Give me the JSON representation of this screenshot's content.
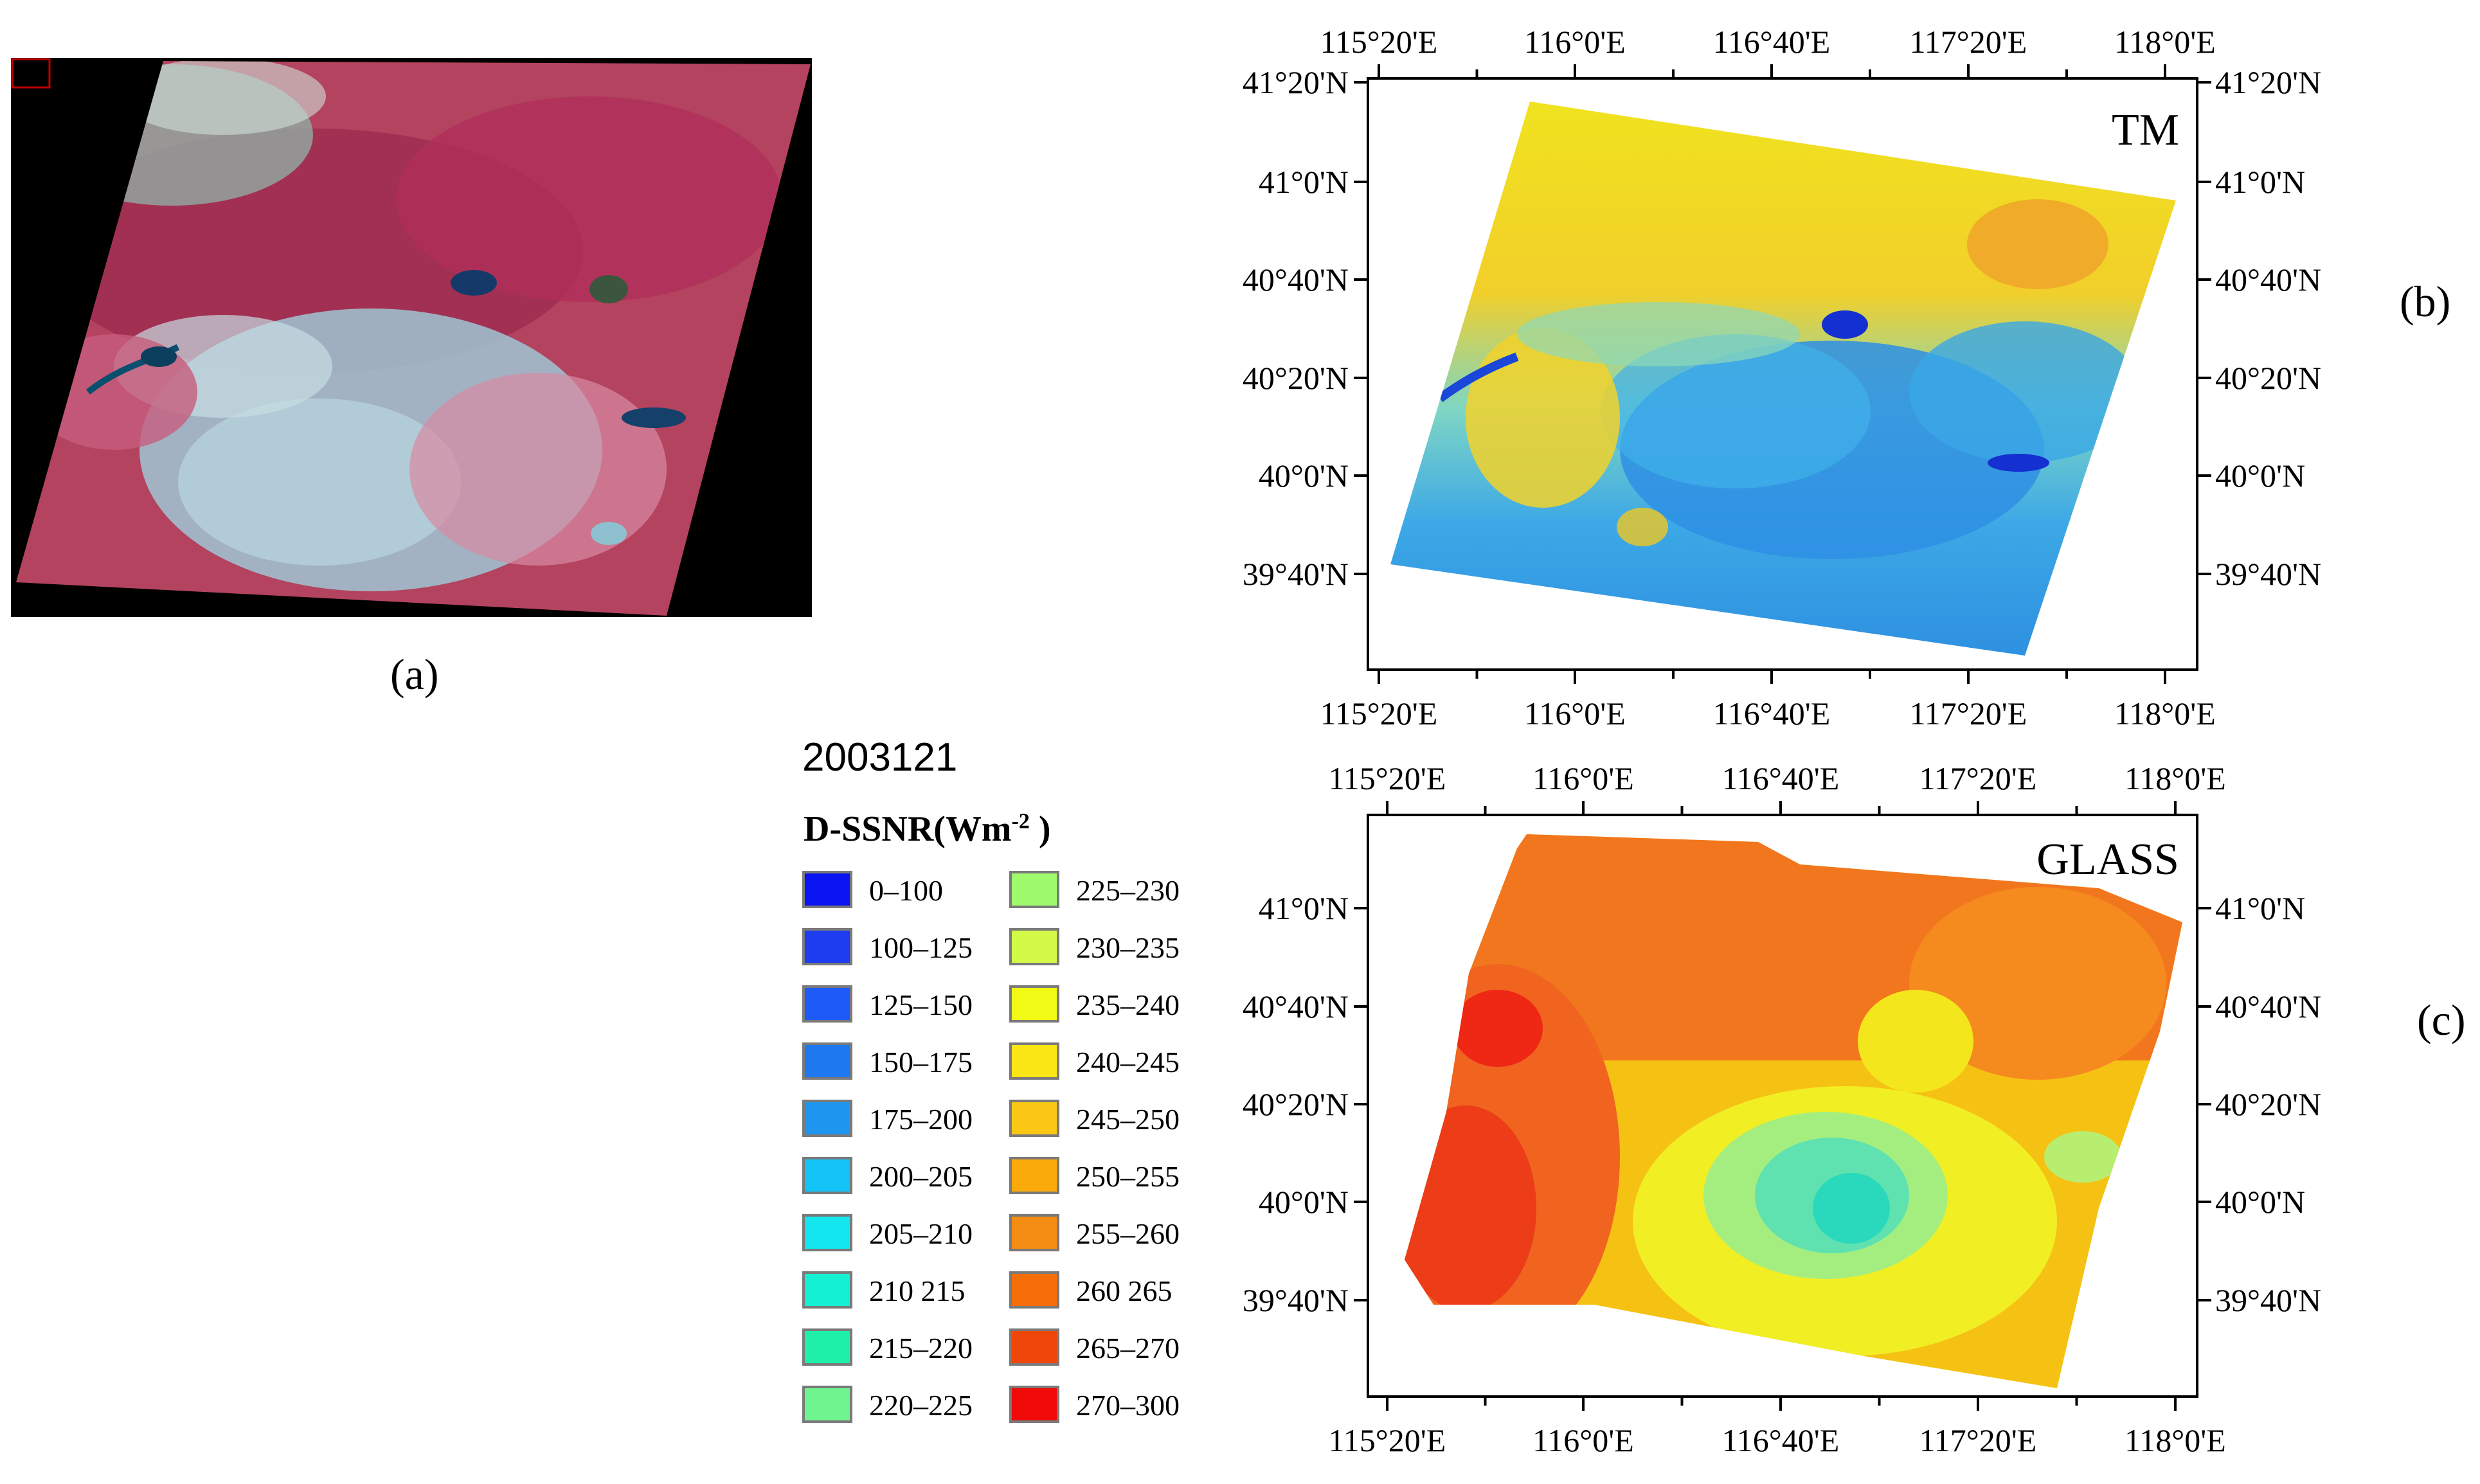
{
  "captions": {
    "a": "(a)",
    "b": "(b)",
    "c": "(c)"
  },
  "panel_b": {
    "title": "TM",
    "top_ticks": [
      "115°20'E",
      "116°0'E",
      "116°40'E",
      "117°20'E",
      "118°0'E"
    ],
    "bottom_ticks": [
      "115°20'E",
      "116°0'E",
      "116°40'E",
      "117°20'E",
      "118°0'E"
    ],
    "left_ticks": [
      "41°20'N",
      "41°0'N",
      "40°40'N",
      "40°20'N",
      "40°0'N",
      "39°40'N"
    ],
    "right_ticks": [
      "41°20'N",
      "41°0'N",
      "40°40'N",
      "40°20'N",
      "40°0'N",
      "39°40'N"
    ]
  },
  "panel_c": {
    "title": "GLASS",
    "top_ticks": [
      "115°20'E",
      "116°0'E",
      "116°40'E",
      "117°20'E",
      "118°0'E"
    ],
    "bottom_ticks": [
      "115°20'E",
      "116°0'E",
      "116°40'E",
      "117°20'E",
      "118°0'E"
    ],
    "left_ticks": [
      "41°0'N",
      "40°40'N",
      "40°20'N",
      "40°0'N",
      "39°40'N"
    ],
    "right_ticks": [
      "41°0'N",
      "40°40'N",
      "40°20'N",
      "40°0'N",
      "39°40'N"
    ]
  },
  "legend": {
    "date": "2003121",
    "title_prefix": "D-SSNR(Wm",
    "title_sup": "-2",
    "title_suffix": " )",
    "items": [
      {
        "label": "0–100",
        "color": "#0a14f0"
      },
      {
        "label": "100–125",
        "color": "#1e3cf0"
      },
      {
        "label": "125–150",
        "color": "#1e5af5"
      },
      {
        "label": "150–175",
        "color": "#1e78f0"
      },
      {
        "label": "175–200",
        "color": "#1e96f0"
      },
      {
        "label": "200–205",
        "color": "#14c3f5"
      },
      {
        "label": "205–210",
        "color": "#14e6f0"
      },
      {
        "label": "210 215",
        "color": "#14f0d2"
      },
      {
        "label": "215–220",
        "color": "#1ef0aa"
      },
      {
        "label": "220–225",
        "color": "#6ef590"
      },
      {
        "label": "225–230",
        "color": "#a0fa6e"
      },
      {
        "label": "230–235",
        "color": "#d2fa46"
      },
      {
        "label": "235–240",
        "color": "#f0fa14"
      },
      {
        "label": "240–245",
        "color": "#fae614"
      },
      {
        "label": "245–250",
        "color": "#fac814"
      },
      {
        "label": "250–255",
        "color": "#faaa0a"
      },
      {
        "label": "255–260",
        "color": "#f58c14"
      },
      {
        "label": "260 265",
        "color": "#f56e0a"
      },
      {
        "label": "265–270",
        "color": "#f0460a"
      },
      {
        "label": "270–300",
        "color": "#f00a0a"
      }
    ]
  }
}
